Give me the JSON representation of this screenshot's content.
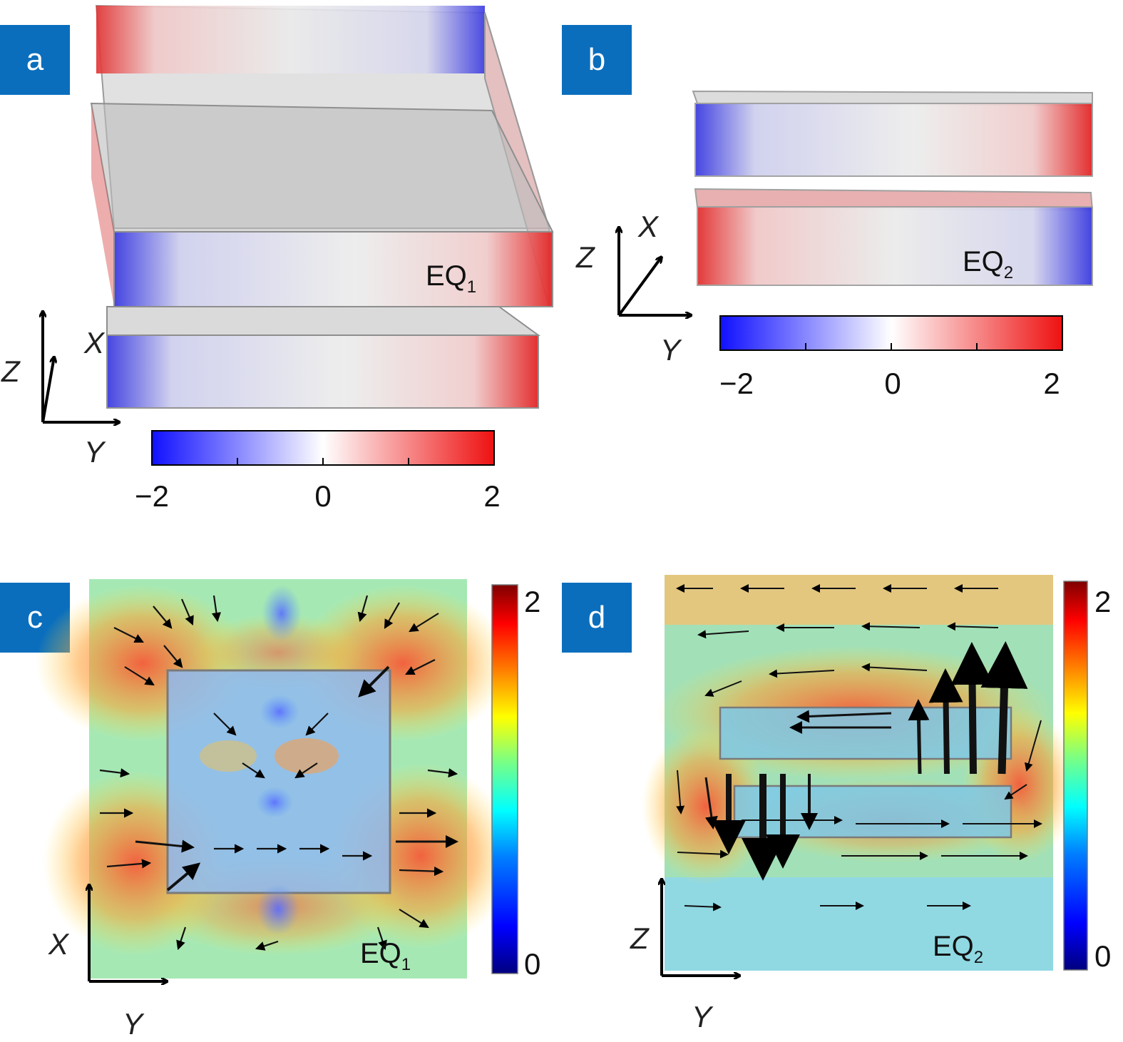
{
  "panels": {
    "a": {
      "label": "a",
      "mode_label": "EQ",
      "mode_subscript": "1",
      "axis_x": "X",
      "axis_y": "Y",
      "axis_z": "Z",
      "colorbar": {
        "min_label": "−2",
        "mid_label": "0",
        "max_label": "2"
      }
    },
    "b": {
      "label": "b",
      "mode_label": "EQ",
      "mode_subscript": "2",
      "axis_x": "X",
      "axis_y": "Y",
      "axis_z": "Z",
      "colorbar": {
        "min_label": "−2",
        "mid_label": "0",
        "max_label": "2"
      }
    },
    "c": {
      "label": "c",
      "mode_label": "EQ",
      "mode_subscript": "1",
      "axis_vertical": "X",
      "axis_horizontal": "Y",
      "colorbar": {
        "min_label": "0",
        "max_label": "2"
      }
    },
    "d": {
      "label": "d",
      "mode_label": "EQ",
      "mode_subscript": "2",
      "axis_vertical": "Z",
      "axis_horizontal": "Y",
      "colorbar": {
        "min_label": "0",
        "max_label": "2"
      }
    }
  },
  "colors": {
    "badge": "#0a6ebd",
    "diverging_low": "#1010ff",
    "diverging_mid": "#ffffff",
    "diverging_high": "#ee1111",
    "jet": [
      "#00007f",
      "#0000ff",
      "#007fff",
      "#00ffff",
      "#7fff7f",
      "#ffff00",
      "#ff7f00",
      "#ff0000",
      "#7f0000"
    ]
  }
}
